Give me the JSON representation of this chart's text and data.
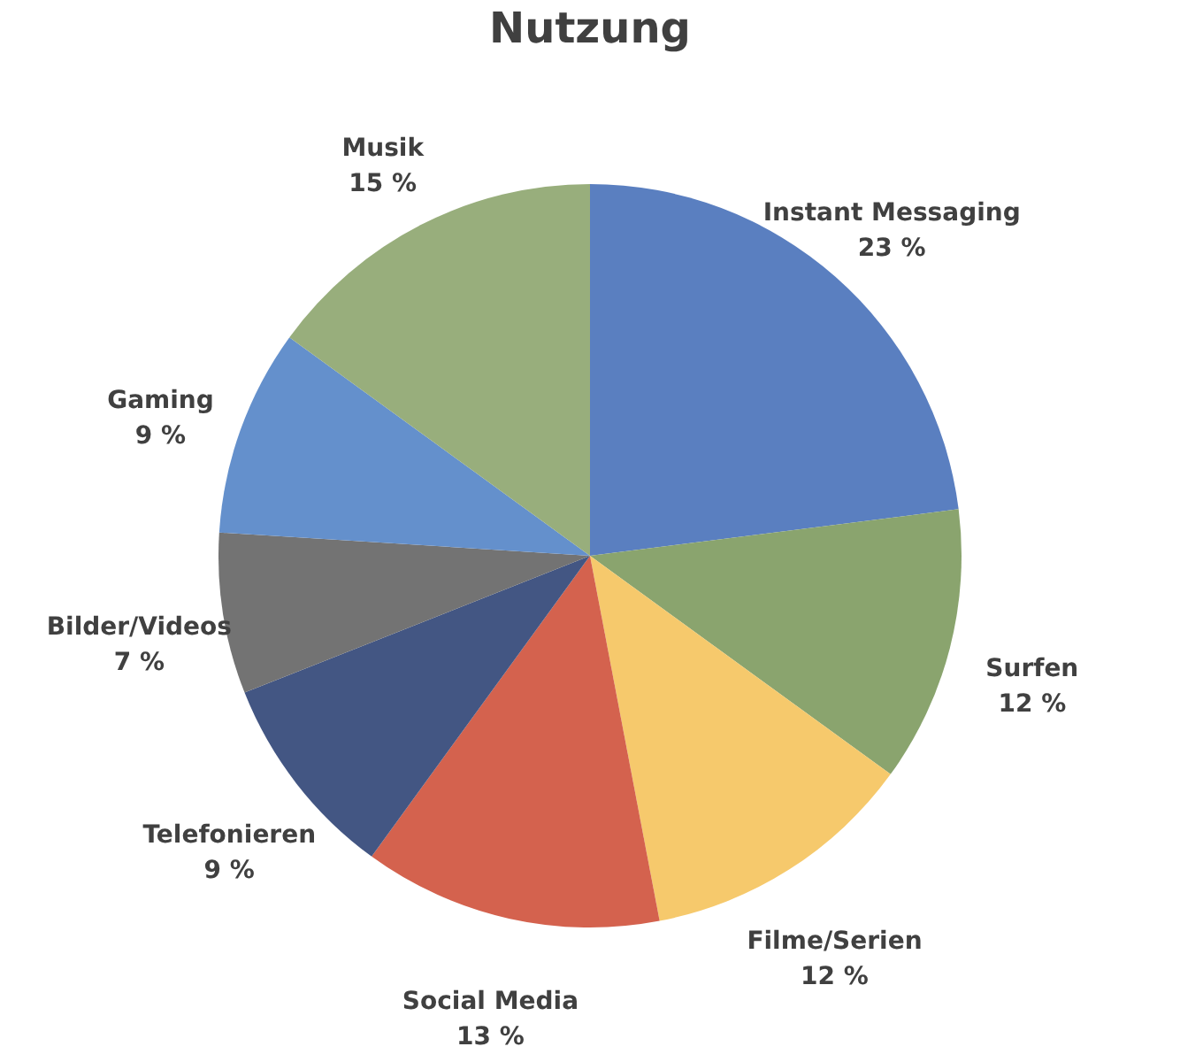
{
  "chart_data": {
    "type": "pie",
    "title": "Nutzung",
    "categories": [
      "Instant Messaging",
      "Surfen",
      "Filme/Serien",
      "Social Media",
      "Telefonieren",
      "Bilder/Videos",
      "Gaming",
      "Musik"
    ],
    "values": [
      23,
      12,
      12,
      13,
      9,
      7,
      9,
      15
    ],
    "value_labels": [
      "23 %",
      "12 %",
      "12 %",
      "13 %",
      "9 %",
      "7 %",
      "9 %",
      "15 %"
    ],
    "colors": [
      "#5a7fc0",
      "#8aa46e",
      "#f6c96c",
      "#d4624e",
      "#435683",
      "#737373",
      "#6490cc",
      "#98ae7c"
    ],
    "legend": false
  }
}
